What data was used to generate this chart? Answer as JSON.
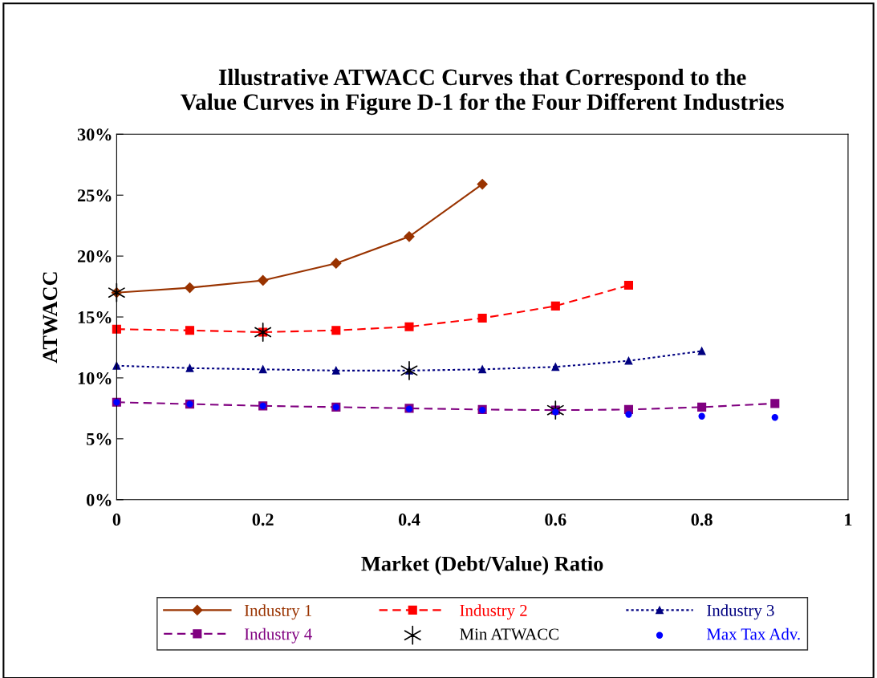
{
  "chart_data": {
    "type": "line",
    "title": "Illustrative ATWACC Curves that Correspond to the\nValue Curves in Figure D-1 for the Four Different Industries",
    "xlabel": "Market (Debt/Value) Ratio",
    "ylabel": "ATWACC",
    "xlim": [
      0,
      1
    ],
    "xticks": [
      0,
      0.2,
      0.4,
      0.6,
      0.8,
      1
    ],
    "ylim": [
      0,
      30
    ],
    "yticks": [
      {
        "value": 0,
        "label": "0%"
      },
      {
        "value": 5,
        "label": "5%"
      },
      {
        "value": 10,
        "label": "10%"
      },
      {
        "value": 15,
        "label": "15%"
      },
      {
        "value": 20,
        "label": "20%"
      },
      {
        "value": 25,
        "label": "25%"
      },
      {
        "value": 30,
        "label": "30%"
      }
    ],
    "grid": false,
    "legend": "bottom",
    "series": [
      {
        "name": "Industry 1",
        "color": "#993300",
        "marker": "diamond",
        "line_style": "solid",
        "x": [
          0,
          0.1,
          0.2,
          0.3,
          0.4,
          0.5
        ],
        "values": [
          17.0,
          17.4,
          18.0,
          19.4,
          21.6,
          25.9
        ]
      },
      {
        "name": "Industry 2",
        "color": "#ff0000",
        "marker": "square",
        "line_style": "dashed",
        "x": [
          0,
          0.1,
          0.2,
          0.3,
          0.4,
          0.5,
          0.6,
          0.7
        ],
        "values": [
          14.0,
          13.9,
          13.75,
          13.9,
          14.2,
          14.9,
          15.9,
          17.6
        ]
      },
      {
        "name": "Industry 3",
        "color": "#000080",
        "marker": "triangle",
        "line_style": "dotted",
        "x": [
          0,
          0.1,
          0.2,
          0.3,
          0.4,
          0.5,
          0.6,
          0.7,
          0.8
        ],
        "values": [
          11.0,
          10.8,
          10.7,
          10.6,
          10.6,
          10.7,
          10.9,
          11.4,
          12.2
        ]
      },
      {
        "name": "Industry 4",
        "color": "#800080",
        "marker": "square",
        "line_style": "dashed",
        "x": [
          0,
          0.1,
          0.2,
          0.3,
          0.4,
          0.5,
          0.6,
          0.7,
          0.8,
          0.9
        ],
        "values": [
          8.0,
          7.85,
          7.7,
          7.6,
          7.5,
          7.4,
          7.35,
          7.4,
          7.6,
          7.9
        ]
      },
      {
        "name": "Min ATWACC",
        "type": "scatter",
        "color": "#000000",
        "marker": "cross",
        "x": [
          0,
          0.2,
          0.4,
          0.6
        ],
        "values": [
          17.0,
          13.75,
          10.6,
          7.35
        ]
      },
      {
        "name": "Max Tax Adv.",
        "type": "scatter",
        "color": "#0000ff",
        "marker": "circle",
        "x": [
          0,
          0.1,
          0.2,
          0.3,
          0.4,
          0.5,
          0.6,
          0.7,
          0.8,
          0.9
        ],
        "values": [
          8.0,
          7.85,
          7.7,
          7.6,
          7.45,
          7.35,
          7.2,
          7.0,
          6.85,
          6.75
        ]
      }
    ]
  }
}
